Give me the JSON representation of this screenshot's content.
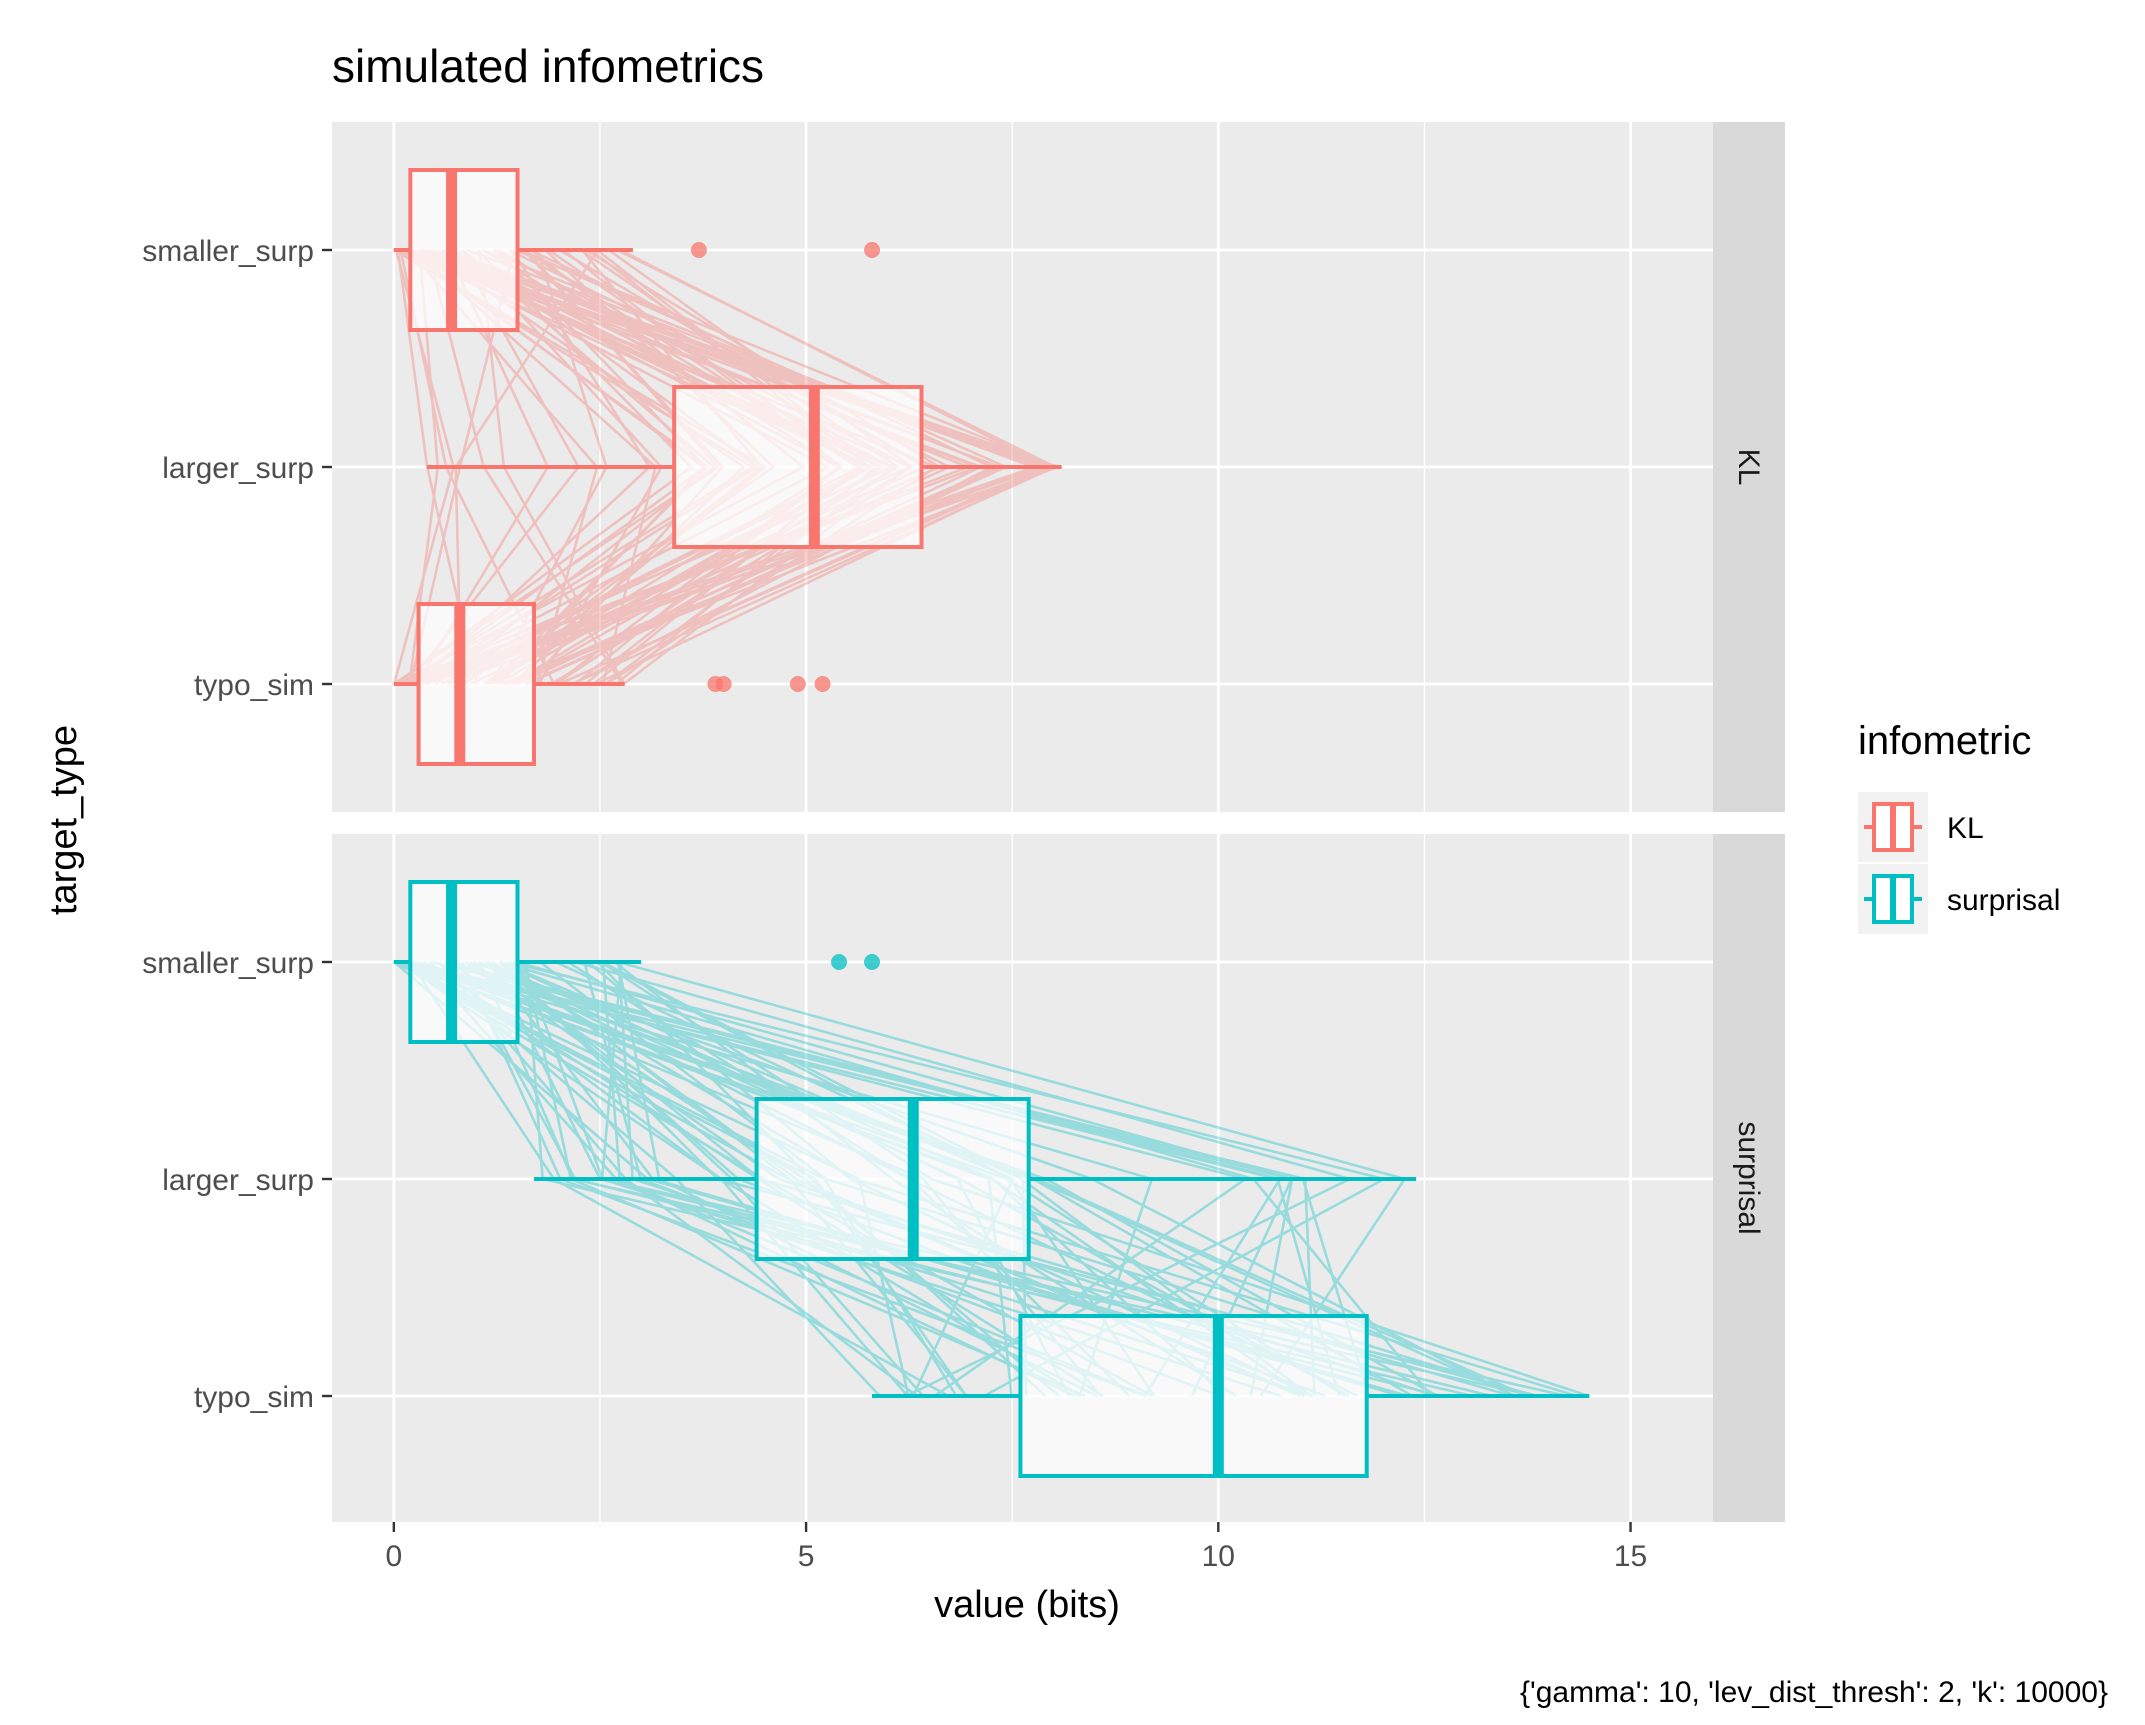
{
  "chart_data": {
    "type": "boxplot",
    "title": "simulated infometrics",
    "xlabel": "value (bits)",
    "ylabel": "target_type",
    "caption": "{'gamma': 10, 'lev_dist_thresh': 2, 'k': 10000}",
    "xlim": [
      -0.75,
      16.0
    ],
    "x_ticks": [
      0,
      5,
      10,
      15
    ],
    "x_tick_labels": [
      "0",
      "5",
      "10",
      "15"
    ],
    "categories": [
      "smaller_surp",
      "larger_surp",
      "typo_sim"
    ],
    "legend": {
      "title": "infometric",
      "position": "right",
      "entries": [
        {
          "label": "KL",
          "color": "#F8766D"
        },
        {
          "label": "surprisal",
          "color": "#00BFC4"
        }
      ]
    },
    "facets": [
      {
        "label": "KL",
        "color": "#F8766D",
        "boxes": [
          {
            "category": "smaller_surp",
            "whisker_low": 0.0,
            "q1": 0.2,
            "median": 0.7,
            "q3": 1.5,
            "whisker_high": 2.9,
            "outliers": [
              3.7,
              5.8
            ]
          },
          {
            "category": "larger_surp",
            "whisker_low": 0.4,
            "q1": 3.4,
            "median": 5.1,
            "q3": 6.4,
            "whisker_high": 8.1,
            "outliers": []
          },
          {
            "category": "typo_sim",
            "whisker_low": 0.0,
            "q1": 0.3,
            "median": 0.8,
            "q3": 1.7,
            "whisker_high": 2.8,
            "outliers": [
              3.9,
              4.0,
              4.9,
              5.2
            ]
          }
        ]
      },
      {
        "label": "surprisal",
        "color": "#00BFC4",
        "boxes": [
          {
            "category": "smaller_surp",
            "whisker_low": 0.0,
            "q1": 0.2,
            "median": 0.7,
            "q3": 1.5,
            "whisker_high": 3.0,
            "outliers": [
              5.4,
              5.8
            ]
          },
          {
            "category": "larger_surp",
            "whisker_low": 1.7,
            "q1": 4.4,
            "median": 6.3,
            "q3": 7.7,
            "whisker_high": 12.4,
            "outliers": []
          },
          {
            "category": "typo_sim",
            "whisker_low": 5.8,
            "q1": 7.6,
            "median": 10.0,
            "q3": 11.8,
            "whisker_high": 14.5,
            "outliers": []
          }
        ]
      }
    ]
  }
}
